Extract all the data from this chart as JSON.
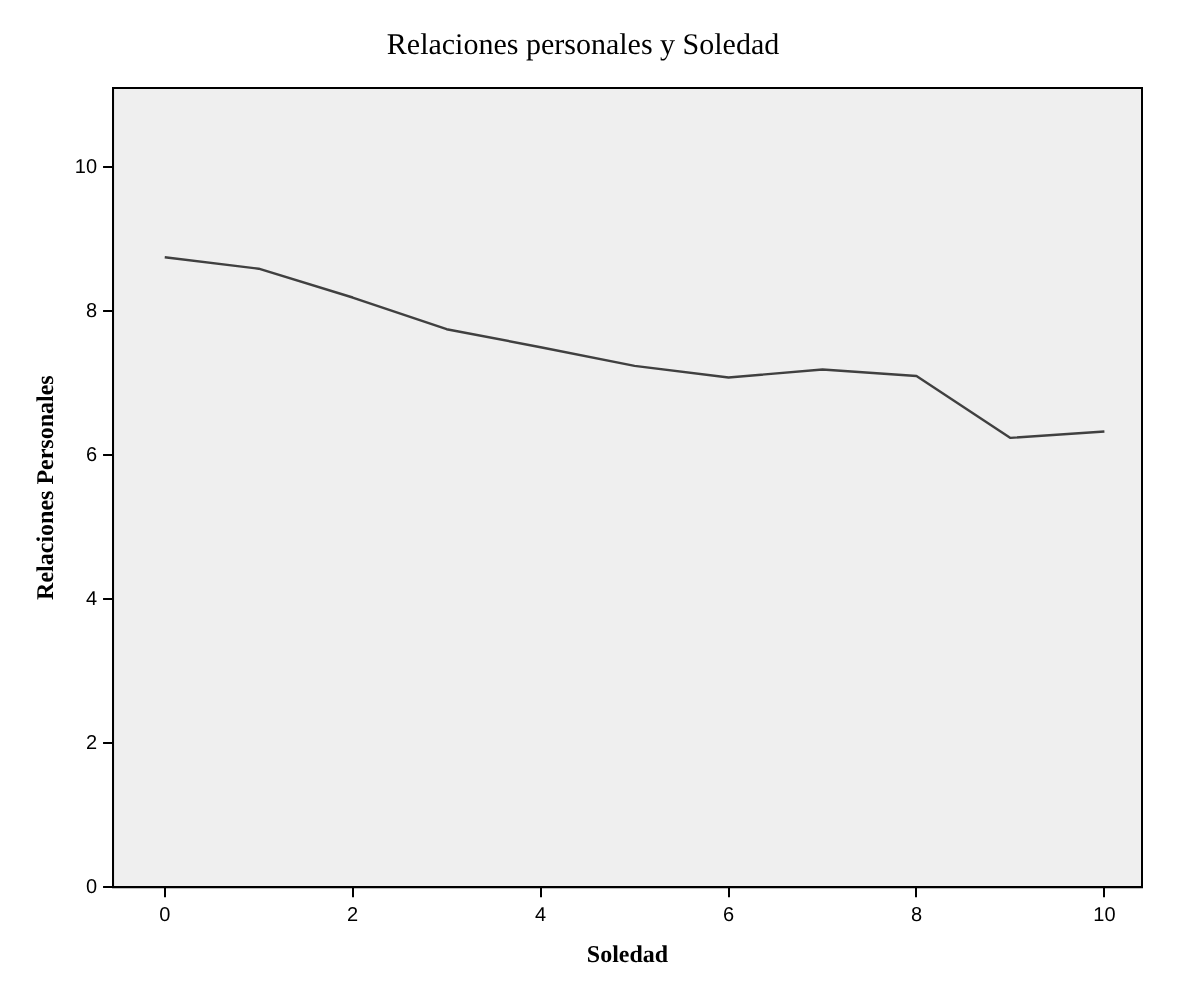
{
  "chart_data": {
    "type": "line",
    "title": "Relaciones personales y Soledad",
    "xlabel": "Soledad",
    "ylabel": "Relaciones Personales",
    "x": [
      0,
      1,
      2,
      3,
      4,
      5,
      6,
      7,
      8,
      9,
      10
    ],
    "series": [
      {
        "color": "#404040",
        "values": [
          8.75,
          8.59,
          8.19,
          7.75,
          7.5,
          7.24,
          7.08,
          7.19,
          7.1,
          6.24,
          6.33
        ]
      }
    ],
    "xlim": [
      -0.55,
      10.4
    ],
    "xticks": [
      0,
      2,
      4,
      6,
      8,
      10
    ],
    "ylim": [
      0,
      11.1
    ],
    "yticks": [
      0,
      2,
      4,
      6,
      8,
      10
    ],
    "grid": false,
    "legend": false,
    "marker": "none",
    "line_style": "solid"
  }
}
